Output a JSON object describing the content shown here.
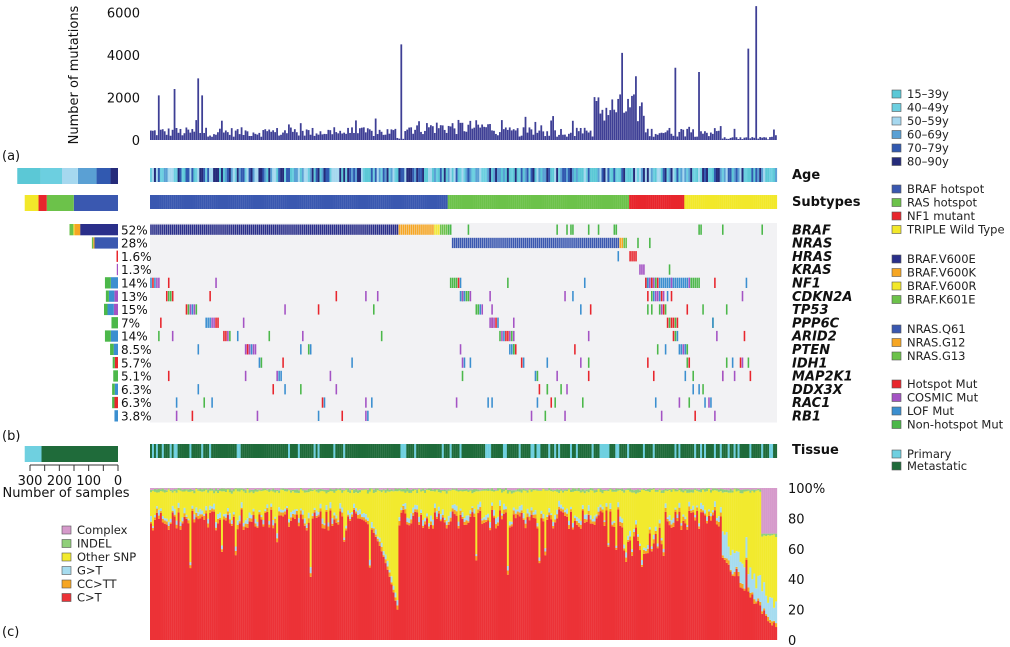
{
  "chart_data": [
    {
      "panel": "(a)",
      "type": "bar",
      "title": "",
      "ylabel": "Number of mutations",
      "xlabel": "",
      "ylim": [
        0,
        6400
      ],
      "yticks": [
        "0",
        "2000",
        "4000",
        "6000"
      ],
      "n_samples": 318,
      "approx_peaks": [
        {
          "sample_index": 4,
          "value": 2100
        },
        {
          "sample_index": 12,
          "value": 2400
        },
        {
          "sample_index": 24,
          "value": 2900
        },
        {
          "sample_index": 26,
          "value": 2100
        },
        {
          "sample_index": 127,
          "value": 4500
        },
        {
          "sample_index": 239,
          "value": 4100
        },
        {
          "sample_index": 246,
          "value": 3000
        },
        {
          "sample_index": 266,
          "value": 3400
        },
        {
          "sample_index": 278,
          "value": 3200
        },
        {
          "sample_index": 303,
          "value": 4300
        },
        {
          "sample_index": 307,
          "value": 6300
        }
      ],
      "baseline_range": [
        100,
        800
      ]
    },
    {
      "panel": "(b)",
      "type": "heatmap",
      "tracks": [
        {
          "name": "Age",
          "label": "Age"
        },
        {
          "name": "Subtypes",
          "label": "Subtypes"
        }
      ],
      "genes": [
        {
          "gene": "BRAF",
          "pct": "52%"
        },
        {
          "gene": "NRAS",
          "pct": "28%"
        },
        {
          "gene": "HRAS",
          "pct": "1.6%"
        },
        {
          "gene": "KRAS",
          "pct": "1.3%"
        },
        {
          "gene": "NF1",
          "pct": "14%"
        },
        {
          "gene": "CDKN2A",
          "pct": "13%"
        },
        {
          "gene": "TP53",
          "pct": "15%"
        },
        {
          "gene": "PPP6C",
          "pct": "7%"
        },
        {
          "gene": "ARID2",
          "pct": "14%"
        },
        {
          "gene": "PTEN",
          "pct": "8.5%"
        },
        {
          "gene": "IDH1",
          "pct": "5.7%"
        },
        {
          "gene": "MAP2K1",
          "pct": "5.1%"
        },
        {
          "gene": "DDX3X",
          "pct": "6.3%"
        },
        {
          "gene": "RAC1",
          "pct": "6.3%"
        },
        {
          "gene": "RB1",
          "pct": "3.8%"
        }
      ],
      "tissue_label": "Tissue",
      "samples_axis": {
        "label": "Number of samples",
        "ticks": [
          "300",
          "200",
          "100",
          "0"
        ],
        "range": [
          300,
          0
        ]
      },
      "subtype_fractions": {
        "BRAF hotspot": 0.474,
        "RAS hotspot": 0.29,
        "NF1 mutant": 0.088,
        "TRIPLE Wild Type": 0.148
      },
      "age_fractions": {
        "15–39y": 0.25,
        "40–49y": 0.23,
        "50–59y": 0.17,
        "60–69y": 0.2,
        "70–79y": 0.15,
        "80–90y": 0.08
      },
      "tissue_fractions": {
        "Primary": 0.18,
        "Metastatic": 0.82
      }
    },
    {
      "panel": "(c)",
      "type": "bar",
      "stacked": true,
      "ylabel": "",
      "yticks": [
        "0",
        "20",
        "40",
        "60",
        "80",
        "100%"
      ],
      "ylim": [
        0,
        100
      ],
      "series_order": [
        "C>T",
        "CC>TT",
        "G>T",
        "Other SNP",
        "INDEL",
        "Complex"
      ],
      "typical_fractions": {
        "C>T": 80,
        "CC>TT": 2,
        "G>T": 3,
        "Other SNP": 12,
        "INDEL": 2,
        "Complex": 1
      }
    }
  ],
  "panel_labels": {
    "a": "(a)",
    "b": "(b)",
    "c": "(c)"
  },
  "legends": {
    "age": [
      {
        "label": "15–39y",
        "color": "#5bc8d6"
      },
      {
        "label": "40–49y",
        "color": "#6ccfe0"
      },
      {
        "label": "50–59y",
        "color": "#a6d8ef"
      },
      {
        "label": "60–69y",
        "color": "#5aa0d4"
      },
      {
        "label": "70–79y",
        "color": "#3159b0"
      },
      {
        "label": "80–90y",
        "color": "#252b7a"
      }
    ],
    "subtypes": [
      {
        "label": "BRAF hotspot",
        "color": "#3a58b0"
      },
      {
        "label": "RAS hotspot",
        "color": "#6cc24a"
      },
      {
        "label": "NF1 mutant",
        "color": "#e8262d"
      },
      {
        "label": "TRIPLE Wild Type",
        "color": "#f2e82a"
      }
    ],
    "braf": [
      {
        "label": "BRAF.V600E",
        "color": "#2a2f8a"
      },
      {
        "label": "BRAF.V600K",
        "color": "#f6a623"
      },
      {
        "label": "BRAF.V600R",
        "color": "#f2e82a"
      },
      {
        "label": "BRAF.K601E",
        "color": "#6cc24a"
      }
    ],
    "nras": [
      {
        "label": "NRAS.Q61",
        "color": "#3a58b0"
      },
      {
        "label": "NRAS.G12",
        "color": "#f6a623"
      },
      {
        "label": "NRAS.G13",
        "color": "#6cc24a"
      }
    ],
    "mut": [
      {
        "label": "Hotspot Mut",
        "color": "#e8262d"
      },
      {
        "label": "COSMIC Mut",
        "color": "#a453c4"
      },
      {
        "label": "LOF Mut",
        "color": "#3b8fd0"
      },
      {
        "label": "Non-hotspot Mut",
        "color": "#4cb84a"
      }
    ],
    "tissue": [
      {
        "label": "Primary",
        "color": "#6fd0e0"
      },
      {
        "label": "Metastatic",
        "color": "#1f6b3a"
      }
    ],
    "spectrum": [
      {
        "label": "Complex",
        "color": "#d69acb"
      },
      {
        "label": "INDEL",
        "color": "#8fcf7a"
      },
      {
        "label": "Other SNP",
        "color": "#f2ea2e"
      },
      {
        "label": "G>T",
        "color": "#a6dcef"
      },
      {
        "label": "CC>TT",
        "color": "#f6a623"
      },
      {
        "label": "C>T",
        "color": "#ec3237"
      }
    ]
  },
  "colors": {
    "bar": "#3e3f95",
    "grid_bg": "#f2f2f4"
  }
}
